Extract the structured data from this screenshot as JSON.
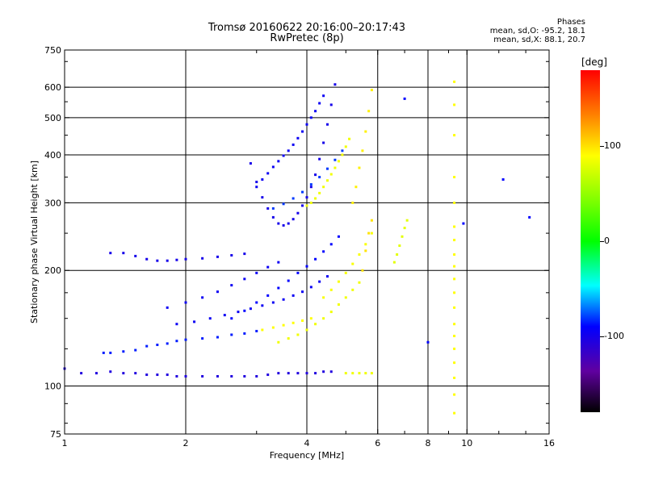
{
  "chart_data": {
    "type": "scatter",
    "title": "Tromsø 20160622 20:16:00–20:17:43",
    "subtitle": "RwPretec (8p)",
    "stats_title": "Phases",
    "stats_o": "mean, sd,O: -95.2, 18.1",
    "stats_x": "mean, sd,X:  88.1, 20.7",
    "xlabel": "Frequency [MHz]",
    "ylabel": "Stationary phase Virtual Height [km]",
    "x_scale": "log",
    "y_scale": "log",
    "xlim": [
      1,
      16
    ],
    "ylim": [
      75,
      750
    ],
    "x_ticks": [
      1,
      2,
      4,
      6,
      8,
      10,
      16
    ],
    "x_tick_labels": [
      "1",
      "2",
      "4",
      "6",
      "8",
      "10",
      "16"
    ],
    "x_gridlines": [
      2,
      4,
      6,
      8,
      10
    ],
    "y_ticks": [
      75,
      100,
      200,
      300,
      400,
      500,
      600,
      750
    ],
    "y_tick_labels": [
      "75",
      "100",
      "200",
      "300",
      "400",
      "500",
      "600",
      "750"
    ],
    "y_gridlines": [
      100,
      200,
      300,
      400,
      500,
      600
    ],
    "grid": true,
    "colorbar": {
      "label": "[deg]",
      "ticks": [
        100,
        0,
        -100
      ],
      "tick_labels": [
        "100",
        "0",
        "-100"
      ],
      "range": [
        -180,
        180
      ]
    },
    "series": [
      {
        "phase": -105,
        "points": [
          [
            1.0,
            111
          ],
          [
            1.1,
            108
          ],
          [
            1.2,
            108
          ],
          [
            1.3,
            109
          ],
          [
            1.4,
            108
          ],
          [
            1.5,
            108
          ],
          [
            1.6,
            107
          ],
          [
            1.7,
            107
          ],
          [
            1.8,
            107
          ],
          [
            1.9,
            106
          ],
          [
            2.0,
            106
          ],
          [
            2.2,
            106
          ],
          [
            2.4,
            106
          ],
          [
            2.6,
            106
          ],
          [
            2.8,
            106
          ],
          [
            3.0,
            106
          ],
          [
            3.2,
            107
          ],
          [
            3.4,
            108
          ],
          [
            3.6,
            108
          ],
          [
            3.8,
            108
          ],
          [
            4.0,
            108
          ],
          [
            4.2,
            108
          ],
          [
            4.4,
            109
          ],
          [
            4.6,
            109
          ]
        ]
      },
      {
        "phase": -85,
        "points": [
          [
            1.25,
            122
          ],
          [
            1.3,
            122
          ],
          [
            1.4,
            123
          ],
          [
            1.5,
            124
          ],
          [
            1.6,
            127
          ],
          [
            1.7,
            128
          ],
          [
            1.8,
            129
          ],
          [
            1.9,
            131
          ],
          [
            2.0,
            132
          ],
          [
            2.2,
            133
          ],
          [
            2.4,
            134
          ],
          [
            2.6,
            136
          ],
          [
            2.8,
            137
          ],
          [
            3.0,
            139
          ]
        ]
      },
      {
        "phase": -100,
        "points": [
          [
            1.3,
            222
          ],
          [
            1.4,
            222
          ],
          [
            1.5,
            218
          ],
          [
            1.6,
            214
          ],
          [
            1.7,
            212
          ],
          [
            1.8,
            212
          ],
          [
            1.9,
            213
          ],
          [
            2.0,
            214
          ],
          [
            2.2,
            215
          ],
          [
            2.4,
            217
          ],
          [
            2.6,
            219
          ],
          [
            2.8,
            221
          ]
        ]
      },
      {
        "phase": -95,
        "points": [
          [
            1.8,
            160
          ],
          [
            2.0,
            165
          ],
          [
            2.2,
            170
          ],
          [
            2.4,
            176
          ],
          [
            2.6,
            183
          ],
          [
            2.8,
            190
          ],
          [
            3.0,
            197
          ],
          [
            3.2,
            204
          ],
          [
            3.4,
            210
          ]
        ]
      },
      {
        "phase": -95,
        "points": [
          [
            1.9,
            145
          ],
          [
            2.1,
            147
          ],
          [
            2.3,
            150
          ],
          [
            2.5,
            153
          ],
          [
            2.7,
            156
          ],
          [
            2.9,
            159
          ],
          [
            3.1,
            162
          ],
          [
            3.3,
            165
          ],
          [
            3.5,
            168
          ],
          [
            3.7,
            172
          ],
          [
            3.9,
            176
          ],
          [
            4.1,
            181
          ],
          [
            4.3,
            187
          ],
          [
            4.5,
            193
          ]
        ]
      },
      {
        "phase": -90,
        "points": [
          [
            2.6,
            150
          ],
          [
            2.8,
            157
          ],
          [
            3.0,
            165
          ],
          [
            3.2,
            172
          ],
          [
            3.4,
            180
          ],
          [
            3.6,
            188
          ],
          [
            3.8,
            197
          ],
          [
            4.0,
            205
          ],
          [
            4.2,
            214
          ],
          [
            4.4,
            224
          ],
          [
            4.6,
            234
          ],
          [
            4.8,
            245
          ]
        ]
      },
      {
        "phase": -100,
        "points": [
          [
            2.9,
            380
          ],
          [
            3.0,
            340
          ],
          [
            3.1,
            310
          ],
          [
            3.2,
            290
          ],
          [
            3.3,
            275
          ],
          [
            3.4,
            265
          ],
          [
            3.5,
            262
          ],
          [
            3.6,
            265
          ],
          [
            3.7,
            272
          ],
          [
            3.8,
            282
          ],
          [
            3.9,
            295
          ],
          [
            4.0,
            310
          ],
          [
            4.1,
            330
          ],
          [
            4.2,
            355
          ],
          [
            4.3,
            390
          ],
          [
            4.4,
            430
          ],
          [
            4.5,
            480
          ],
          [
            4.6,
            540
          ],
          [
            4.7,
            610
          ]
        ]
      },
      {
        "phase": -95,
        "points": [
          [
            3.0,
            330
          ],
          [
            3.1,
            345
          ],
          [
            3.2,
            358
          ],
          [
            3.3,
            372
          ],
          [
            3.4,
            385
          ],
          [
            3.5,
            398
          ],
          [
            3.6,
            410
          ],
          [
            3.7,
            425
          ],
          [
            3.8,
            442
          ],
          [
            3.9,
            460
          ],
          [
            4.0,
            480
          ],
          [
            4.1,
            500
          ],
          [
            4.2,
            520
          ],
          [
            4.3,
            545
          ],
          [
            4.4,
            570
          ]
        ]
      },
      {
        "phase": -80,
        "points": [
          [
            3.3,
            290
          ],
          [
            3.5,
            298
          ],
          [
            3.7,
            308
          ],
          [
            3.9,
            320
          ],
          [
            4.1,
            335
          ],
          [
            4.3,
            350
          ],
          [
            4.5,
            368
          ],
          [
            4.7,
            388
          ],
          [
            4.9,
            410
          ]
        ]
      },
      {
        "phase": 85,
        "points": [
          [
            4.0,
            295
          ],
          [
            4.1,
            300
          ],
          [
            4.2,
            308
          ],
          [
            4.3,
            318
          ],
          [
            4.4,
            330
          ],
          [
            4.5,
            343
          ],
          [
            4.6,
            356
          ],
          [
            4.7,
            370
          ],
          [
            4.8,
            385
          ],
          [
            4.9,
            400
          ],
          [
            5.0,
            420
          ],
          [
            5.1,
            440
          ]
        ]
      },
      {
        "phase": 90,
        "points": [
          [
            3.1,
            140
          ],
          [
            3.3,
            142
          ],
          [
            3.5,
            144
          ],
          [
            3.7,
            146
          ],
          [
            3.9,
            148
          ],
          [
            4.1,
            150
          ]
        ]
      },
      {
        "phase": 85,
        "points": [
          [
            3.4,
            130
          ],
          [
            3.6,
            133
          ],
          [
            3.8,
            136
          ],
          [
            4.0,
            140
          ],
          [
            4.2,
            145
          ],
          [
            4.4,
            150
          ],
          [
            4.6,
            156
          ],
          [
            4.8,
            163
          ],
          [
            5.0,
            170
          ],
          [
            5.2,
            178
          ],
          [
            5.4,
            186
          ]
        ]
      },
      {
        "phase": 88,
        "points": [
          [
            4.4,
            170
          ],
          [
            4.6,
            178
          ],
          [
            4.8,
            187
          ],
          [
            5.0,
            197
          ],
          [
            5.2,
            208
          ],
          [
            5.4,
            220
          ],
          [
            5.6,
            234
          ],
          [
            5.8,
            250
          ]
        ]
      },
      {
        "phase": 95,
        "points": [
          [
            5.2,
            300
          ],
          [
            5.3,
            330
          ],
          [
            5.4,
            370
          ],
          [
            5.5,
            410
          ],
          [
            5.6,
            460
          ],
          [
            5.7,
            520
          ],
          [
            5.8,
            590
          ]
        ]
      },
      {
        "phase": 100,
        "points": [
          [
            5.5,
            200
          ],
          [
            5.6,
            225
          ],
          [
            5.7,
            250
          ],
          [
            5.8,
            270
          ]
        ]
      },
      {
        "phase": 85,
        "points": [
          [
            5.0,
            108
          ],
          [
            5.2,
            108
          ],
          [
            5.4,
            108
          ],
          [
            5.6,
            108
          ],
          [
            5.8,
            108
          ]
        ]
      },
      {
        "phase": 80,
        "points": [
          [
            6.6,
            210
          ],
          [
            6.7,
            220
          ],
          [
            6.8,
            232
          ],
          [
            6.9,
            245
          ],
          [
            7.0,
            258
          ],
          [
            7.1,
            270
          ]
        ]
      },
      {
        "phase": 90,
        "points": [
          [
            9.3,
            85
          ],
          [
            9.3,
            95
          ],
          [
            9.3,
            105
          ],
          [
            9.3,
            115
          ],
          [
            9.3,
            125
          ],
          [
            9.3,
            135
          ],
          [
            9.3,
            145
          ],
          [
            9.3,
            160
          ],
          [
            9.3,
            175
          ],
          [
            9.3,
            190
          ],
          [
            9.3,
            205
          ],
          [
            9.3,
            220
          ],
          [
            9.3,
            240
          ],
          [
            9.3,
            260
          ],
          [
            9.3,
            300
          ],
          [
            9.3,
            350
          ],
          [
            9.3,
            450
          ],
          [
            9.3,
            540
          ],
          [
            9.3,
            620
          ]
        ]
      },
      {
        "phase": -90,
        "points": [
          [
            7.0,
            560
          ],
          [
            12.3,
            345
          ],
          [
            14.3,
            275
          ],
          [
            8.0,
            130
          ],
          [
            9.8,
            265
          ]
        ]
      }
    ]
  }
}
